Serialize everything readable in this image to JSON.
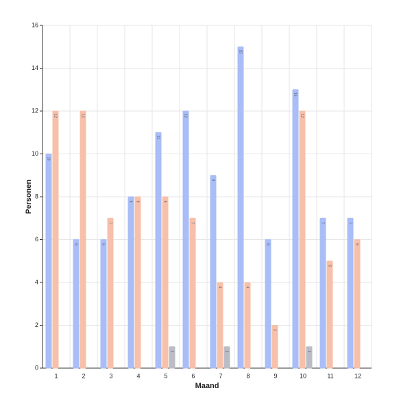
{
  "chart_data": {
    "type": "bar",
    "x_label": "Maand",
    "y_label": "Personen",
    "categories": [
      "1",
      "2",
      "3",
      "4",
      "5",
      "6",
      "7",
      "8",
      "9",
      "10",
      "11",
      "12"
    ],
    "series": [
      {
        "color": "#a9bdf6",
        "values": [
          10,
          6,
          6,
          8,
          11,
          12,
          9,
          15,
          6,
          13,
          7,
          7
        ]
      },
      {
        "color": "#f7c0aa",
        "values": [
          12,
          12,
          7,
          8,
          8,
          7,
          4,
          4,
          2,
          12,
          5,
          6
        ]
      },
      {
        "color": "#babdc6",
        "values": [
          null,
          null,
          null,
          null,
          1,
          null,
          1,
          null,
          null,
          1,
          null,
          null
        ]
      }
    ],
    "ylim": [
      0,
      16
    ],
    "yticks": [
      0,
      2,
      4,
      6,
      8,
      10,
      12,
      14,
      16
    ],
    "grid": true
  }
}
